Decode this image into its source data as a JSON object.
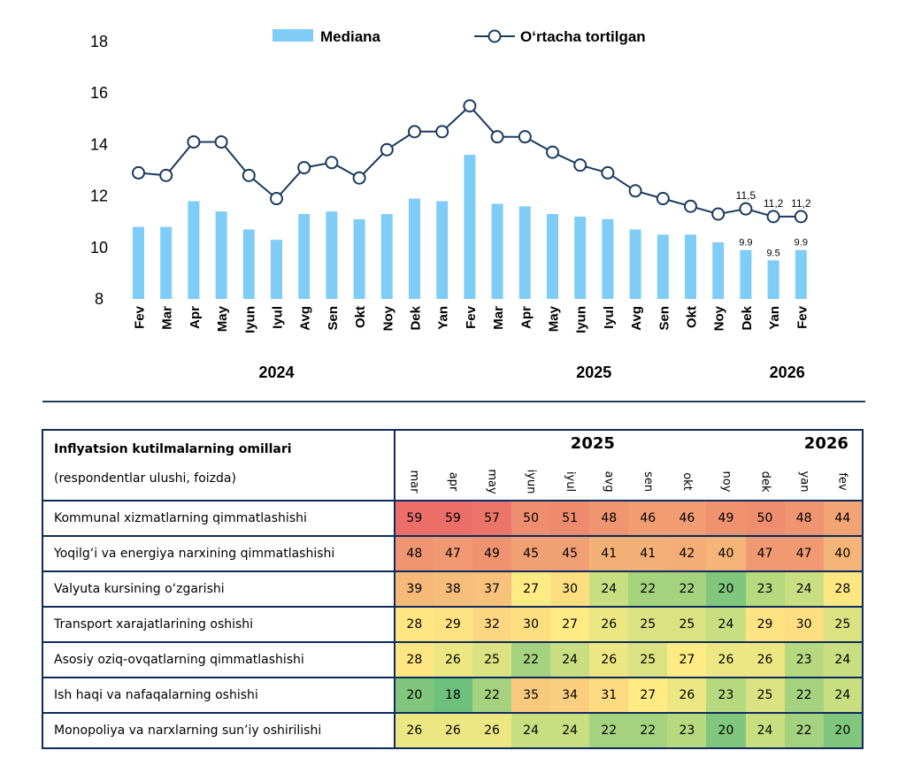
{
  "chart_data": {
    "type": "bar+line",
    "title": "",
    "xlabel": "",
    "ylabel": "",
    "ylim": [
      8,
      18
    ],
    "yticks": [
      8,
      10,
      12,
      14,
      16,
      18
    ],
    "grid": false,
    "legend_position": "top",
    "categories": [
      "Fev",
      "Mar",
      "Apr",
      "May",
      "Iyun",
      "Iyul",
      "Avg",
      "Sen",
      "Okt",
      "Noy",
      "Dek",
      "Yan",
      "Fev",
      "Mar",
      "Apr",
      "May",
      "Iyun",
      "Iyul",
      "Avg",
      "Sen",
      "Okt",
      "Noy",
      "Dek",
      "Yan",
      "Fev"
    ],
    "year_groups": [
      {
        "label": "2024",
        "start": 0,
        "end": 10
      },
      {
        "label": "2025",
        "start": 11,
        "end": 22
      },
      {
        "label": "2026",
        "start": 23,
        "end": 24
      }
    ],
    "series": [
      {
        "name": "Mediana",
        "type": "bar",
        "color": "#7fcdf6",
        "values": [
          10.8,
          10.8,
          11.8,
          11.4,
          10.7,
          10.3,
          11.3,
          11.4,
          11.1,
          11.3,
          11.9,
          11.8,
          13.6,
          11.7,
          11.6,
          11.3,
          11.2,
          11.1,
          10.7,
          10.5,
          10.5,
          10.2,
          9.9,
          9.5,
          9.9
        ]
      },
      {
        "name": "O‘rtacha tortilgan",
        "type": "line",
        "color": "#1b3a5e",
        "values": [
          12.9,
          12.8,
          14.1,
          14.1,
          12.8,
          11.9,
          13.1,
          13.3,
          12.7,
          13.8,
          14.5,
          14.5,
          15.5,
          14.3,
          14.3,
          13.7,
          13.2,
          12.9,
          12.2,
          11.9,
          11.6,
          11.3,
          11.5,
          11.2,
          11.2
        ]
      }
    ],
    "data_labels": [
      {
        "series": "Mediana",
        "index": 22,
        "text": "9.9"
      },
      {
        "series": "Mediana",
        "index": 23,
        "text": "9.5"
      },
      {
        "series": "Mediana",
        "index": 24,
        "text": "9.9"
      },
      {
        "series": "O‘rtacha tortilgan",
        "index": 22,
        "text": "11,5"
      },
      {
        "series": "O‘rtacha tortilgan",
        "index": 23,
        "text": "11,2"
      },
      {
        "series": "O‘rtacha tortilgan",
        "index": 24,
        "text": "11,2"
      }
    ]
  },
  "heatmap": {
    "title": "Inflyatsion kutilmalarning omillari",
    "subtitle": "(respondentlar ulushi, foizda)",
    "years": [
      {
        "label": "2025",
        "start": 0,
        "end": 9
      },
      {
        "label": "2026",
        "start": 10,
        "end": 11
      }
    ],
    "months": [
      "mar",
      "apr",
      "may",
      "iyun",
      "iyul",
      "avg",
      "sen",
      "okt",
      "noy",
      "dek",
      "yan",
      "fev"
    ],
    "rows": [
      {
        "label": "Kommunal xizmatlarning qimmatlashishi",
        "values": [
          59,
          59,
          57,
          50,
          51,
          48,
          46,
          46,
          49,
          50,
          48,
          44
        ]
      },
      {
        "label": "Yoqilg‘i va energiya narxining qimmatlashishi",
        "values": [
          48,
          47,
          49,
          45,
          45,
          41,
          41,
          42,
          40,
          47,
          47,
          40
        ]
      },
      {
        "label": "Valyuta kursining o‘zgarishi",
        "values": [
          39,
          38,
          37,
          27,
          30,
          24,
          22,
          22,
          20,
          23,
          24,
          28
        ]
      },
      {
        "label": "Transport xarajatlarining oshishi",
        "values": [
          28,
          29,
          32,
          30,
          27,
          26,
          25,
          25,
          24,
          29,
          30,
          25
        ]
      },
      {
        "label": "Asosiy oziq-ovqatlarning qimmatlashishi",
        "values": [
          28,
          26,
          25,
          22,
          24,
          26,
          25,
          27,
          26,
          26,
          23,
          24
        ]
      },
      {
        "label": "Ish haqi va nafaqalarning oshishi",
        "values": [
          20,
          18,
          22,
          35,
          34,
          31,
          27,
          26,
          23,
          25,
          22,
          24
        ]
      },
      {
        "label": "Monopoliya va narxlarning sun’iy oshirilishi",
        "values": [
          26,
          26,
          26,
          24,
          24,
          22,
          22,
          23,
          20,
          24,
          22,
          20
        ]
      }
    ]
  }
}
